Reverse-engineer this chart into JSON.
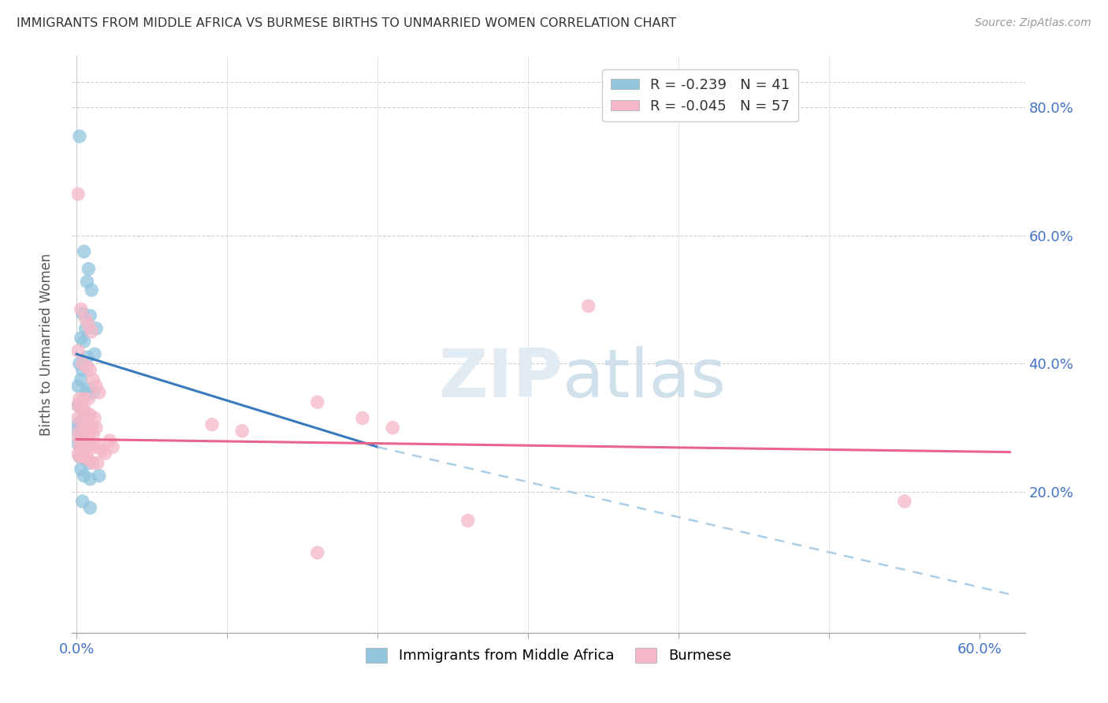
{
  "title": "IMMIGRANTS FROM MIDDLE AFRICA VS BURMESE BIRTHS TO UNMARRIED WOMEN CORRELATION CHART",
  "source": "Source: ZipAtlas.com",
  "ylabel": "Births to Unmarried Women",
  "xlim": [
    -0.003,
    0.63
  ],
  "ylim": [
    -0.02,
    0.88
  ],
  "legend_R1": "R = -0.239",
  "legend_N1": "N = 41",
  "legend_R2": "R = -0.045",
  "legend_N2": "N = 57",
  "blue_color": "#92c5de",
  "pink_color": "#f4b8c8",
  "blue_line_color": "#3a7bbf",
  "pink_line_color": "#e8648a",
  "dashed_line_color": "#aacde8",
  "background_color": "#ffffff",
  "watermark": "ZIPatlas",
  "blue_dots": [
    [
      0.002,
      0.755
    ],
    [
      0.005,
      0.575
    ],
    [
      0.008,
      0.548
    ],
    [
      0.007,
      0.528
    ],
    [
      0.01,
      0.515
    ],
    [
      0.004,
      0.478
    ],
    [
      0.009,
      0.475
    ],
    [
      0.006,
      0.455
    ],
    [
      0.013,
      0.455
    ],
    [
      0.003,
      0.44
    ],
    [
      0.005,
      0.435
    ],
    [
      0.012,
      0.415
    ],
    [
      0.007,
      0.41
    ],
    [
      0.002,
      0.4
    ],
    [
      0.004,
      0.39
    ],
    [
      0.003,
      0.375
    ],
    [
      0.001,
      0.365
    ],
    [
      0.006,
      0.355
    ],
    [
      0.008,
      0.36
    ],
    [
      0.011,
      0.355
    ],
    [
      0.001,
      0.335
    ],
    [
      0.003,
      0.33
    ],
    [
      0.005,
      0.325
    ],
    [
      0.007,
      0.315
    ],
    [
      0.001,
      0.305
    ],
    [
      0.002,
      0.308
    ],
    [
      0.003,
      0.305
    ],
    [
      0.001,
      0.295
    ],
    [
      0.002,
      0.285
    ],
    [
      0.001,
      0.275
    ],
    [
      0.003,
      0.27
    ],
    [
      0.005,
      0.265
    ],
    [
      0.002,
      0.255
    ],
    [
      0.006,
      0.25
    ],
    [
      0.008,
      0.245
    ],
    [
      0.003,
      0.235
    ],
    [
      0.005,
      0.225
    ],
    [
      0.009,
      0.22
    ],
    [
      0.015,
      0.225
    ],
    [
      0.004,
      0.185
    ],
    [
      0.009,
      0.175
    ]
  ],
  "pink_dots": [
    [
      0.001,
      0.665
    ],
    [
      0.34,
      0.49
    ],
    [
      0.003,
      0.485
    ],
    [
      0.006,
      0.47
    ],
    [
      0.008,
      0.46
    ],
    [
      0.01,
      0.45
    ],
    [
      0.001,
      0.42
    ],
    [
      0.004,
      0.4
    ],
    [
      0.007,
      0.395
    ],
    [
      0.009,
      0.39
    ],
    [
      0.011,
      0.375
    ],
    [
      0.013,
      0.365
    ],
    [
      0.015,
      0.355
    ],
    [
      0.002,
      0.345
    ],
    [
      0.005,
      0.345
    ],
    [
      0.008,
      0.345
    ],
    [
      0.001,
      0.335
    ],
    [
      0.003,
      0.33
    ],
    [
      0.006,
      0.325
    ],
    [
      0.009,
      0.32
    ],
    [
      0.012,
      0.315
    ],
    [
      0.001,
      0.315
    ],
    [
      0.004,
      0.31
    ],
    [
      0.007,
      0.305
    ],
    [
      0.01,
      0.3
    ],
    [
      0.013,
      0.3
    ],
    [
      0.002,
      0.295
    ],
    [
      0.005,
      0.295
    ],
    [
      0.008,
      0.29
    ],
    [
      0.011,
      0.29
    ],
    [
      0.001,
      0.285
    ],
    [
      0.003,
      0.28
    ],
    [
      0.006,
      0.28
    ],
    [
      0.009,
      0.275
    ],
    [
      0.012,
      0.27
    ],
    [
      0.015,
      0.27
    ],
    [
      0.002,
      0.27
    ],
    [
      0.004,
      0.265
    ],
    [
      0.007,
      0.26
    ],
    [
      0.001,
      0.258
    ],
    [
      0.003,
      0.255
    ],
    [
      0.005,
      0.255
    ],
    [
      0.008,
      0.25
    ],
    [
      0.011,
      0.245
    ],
    [
      0.014,
      0.245
    ],
    [
      0.017,
      0.265
    ],
    [
      0.019,
      0.26
    ],
    [
      0.022,
      0.28
    ],
    [
      0.024,
      0.27
    ],
    [
      0.09,
      0.305
    ],
    [
      0.11,
      0.295
    ],
    [
      0.16,
      0.34
    ],
    [
      0.19,
      0.315
    ],
    [
      0.21,
      0.3
    ],
    [
      0.55,
      0.185
    ],
    [
      0.26,
      0.155
    ],
    [
      0.16,
      0.105
    ]
  ],
  "blue_line": {
    "x0": 0.0,
    "y0": 0.415,
    "x1": 0.2,
    "y1": 0.27
  },
  "blue_dashed_line": {
    "x0": 0.2,
    "y0": 0.27,
    "x1": 0.62,
    "y1": 0.04
  },
  "pink_line": {
    "x0": 0.0,
    "y0": 0.282,
    "x1": 0.62,
    "y1": 0.262
  }
}
